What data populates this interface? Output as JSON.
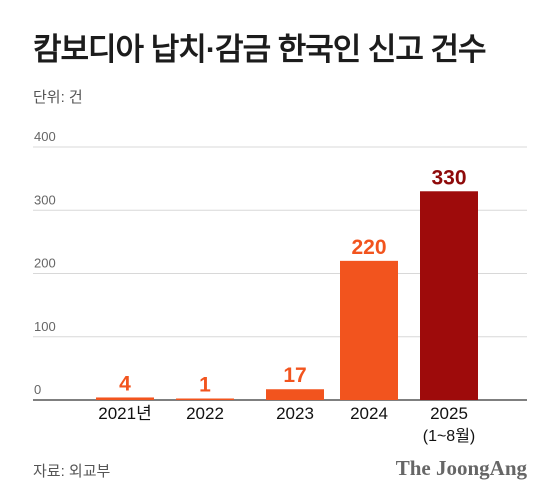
{
  "title": "캄보디아 납치·감금 한국인 신고 건수",
  "unit_label": "단위: 건",
  "source": "자료: 외교부",
  "brand": "The JoongAng",
  "colors": {
    "normal_bar": "#f2541e",
    "normal_label": "#f2541e",
    "highlight_bar": "#9e0b0b",
    "highlight_label": "#8e0a0a",
    "grid": "#d8d8d8",
    "axis": "#333333"
  },
  "chart_data": {
    "type": "bar",
    "title": "캄보디아 납치·감금 한국인 신고 건수",
    "categories": [
      "2021년",
      "2022",
      "2023",
      "2024",
      "2025"
    ],
    "category_sublabels": [
      "",
      "",
      "",
      "",
      "(1~8월)"
    ],
    "values": [
      4,
      1,
      17,
      220,
      330
    ],
    "value_labels": [
      "4",
      "1",
      "17",
      "220",
      "330"
    ],
    "highlight_index": 4,
    "ylim": [
      0,
      400
    ],
    "yticks": [
      "0",
      "100",
      "200",
      "300",
      "400"
    ],
    "ytick_values": [
      0,
      100,
      200,
      300,
      400
    ],
    "grid": true,
    "xlabel": "",
    "ylabel": ""
  }
}
